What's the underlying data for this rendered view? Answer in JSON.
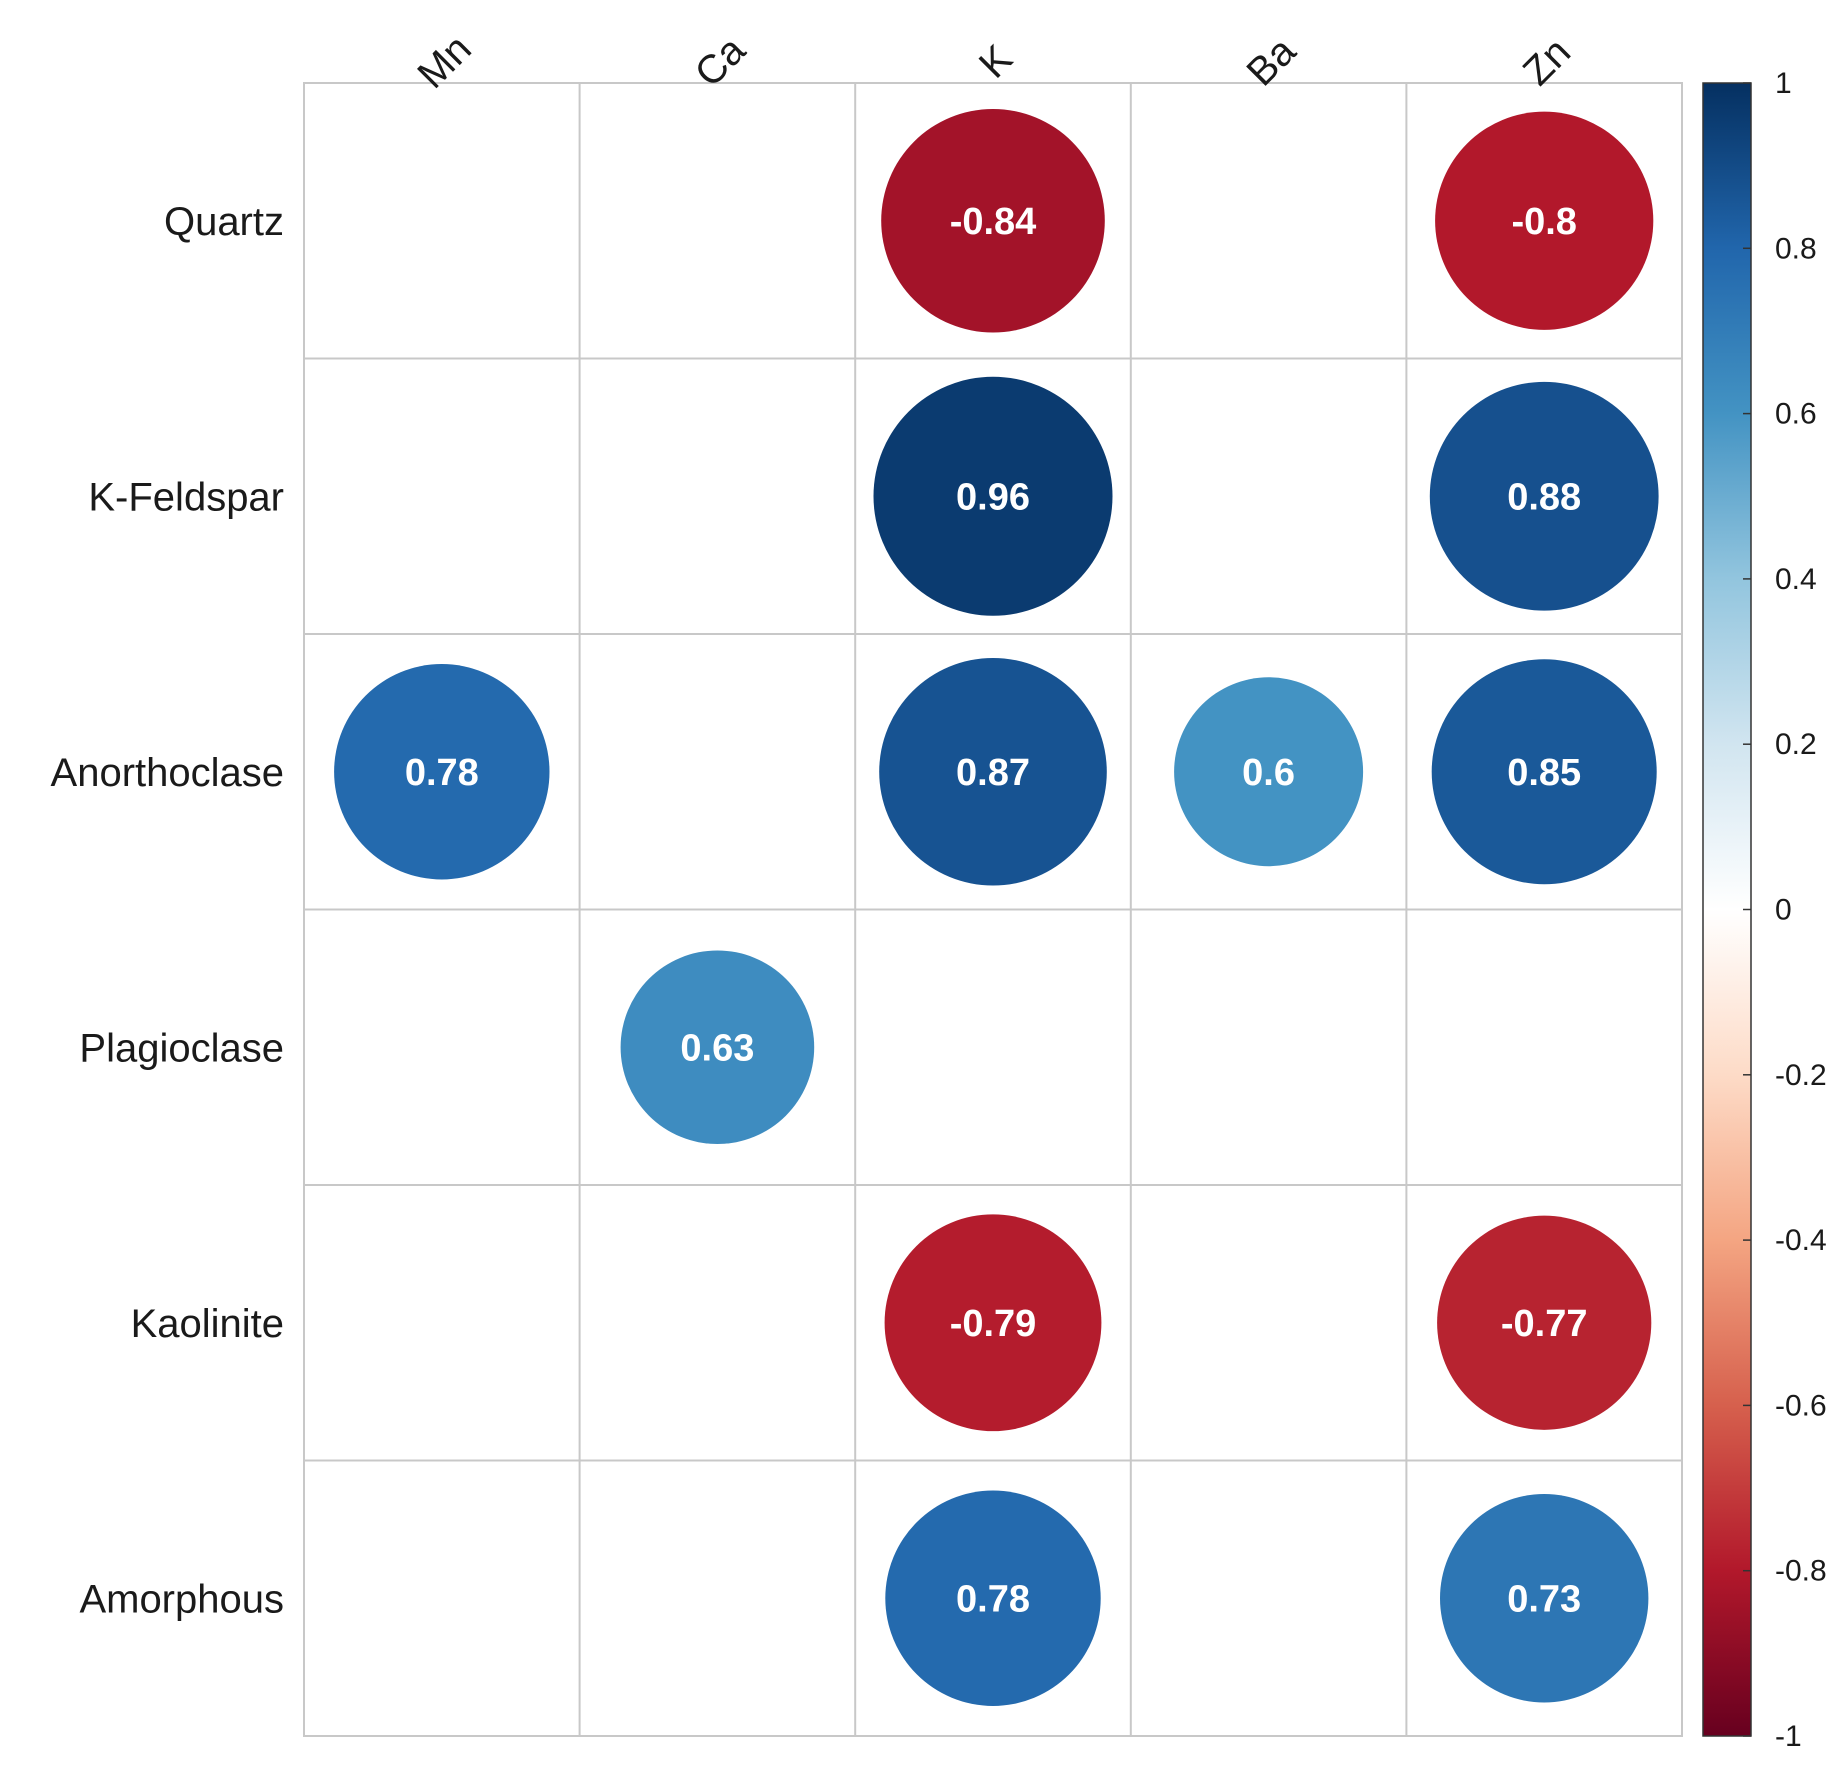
{
  "chart_data": {
    "type": "heatmap",
    "style": "correlation-circles",
    "columns": [
      "Mn",
      "Ca",
      "K",
      "Ba",
      "Zn"
    ],
    "rows": [
      "Quartz",
      "K-Feldspar",
      "Anorthoclase",
      "Plagioclase",
      "Kaolinite",
      "Amorphous"
    ],
    "values": [
      [
        null,
        null,
        -0.84,
        null,
        -0.8
      ],
      [
        null,
        null,
        0.96,
        null,
        0.88
      ],
      [
        0.78,
        null,
        0.87,
        0.6,
        0.85
      ],
      [
        null,
        0.63,
        null,
        null,
        null
      ],
      [
        null,
        null,
        -0.79,
        null,
        -0.77
      ],
      [
        null,
        null,
        0.78,
        null,
        0.73
      ]
    ],
    "value_labels": [
      [
        null,
        null,
        "-0.84",
        null,
        "-0.8"
      ],
      [
        null,
        null,
        "0.96",
        null,
        "0.88"
      ],
      [
        "0.78",
        null,
        "0.87",
        "0.6",
        "0.85"
      ],
      [
        null,
        "0.63",
        null,
        null,
        null
      ],
      [
        null,
        null,
        "-0.79",
        null,
        "-0.77"
      ],
      [
        null,
        null,
        "0.78",
        null,
        "0.73"
      ]
    ],
    "colorbar": {
      "range": [
        -1,
        1
      ],
      "ticks": [
        "1",
        "0.8",
        "0.6",
        "0.4",
        "0.2",
        "0",
        "-0.2",
        "-0.4",
        "-0.6",
        "-0.8",
        "-1"
      ],
      "tick_values": [
        1,
        0.8,
        0.6,
        0.4,
        0.2,
        0,
        -0.2,
        -0.4,
        -0.6,
        -0.8,
        -1
      ],
      "colors": [
        "#67001f",
        "#b2182b",
        "#d6604d",
        "#f4a582",
        "#fddbc7",
        "#ffffff",
        "#d1e5f0",
        "#92c5de",
        "#4393c3",
        "#2166ac",
        "#053061"
      ],
      "placement": "right"
    },
    "grid": true
  }
}
